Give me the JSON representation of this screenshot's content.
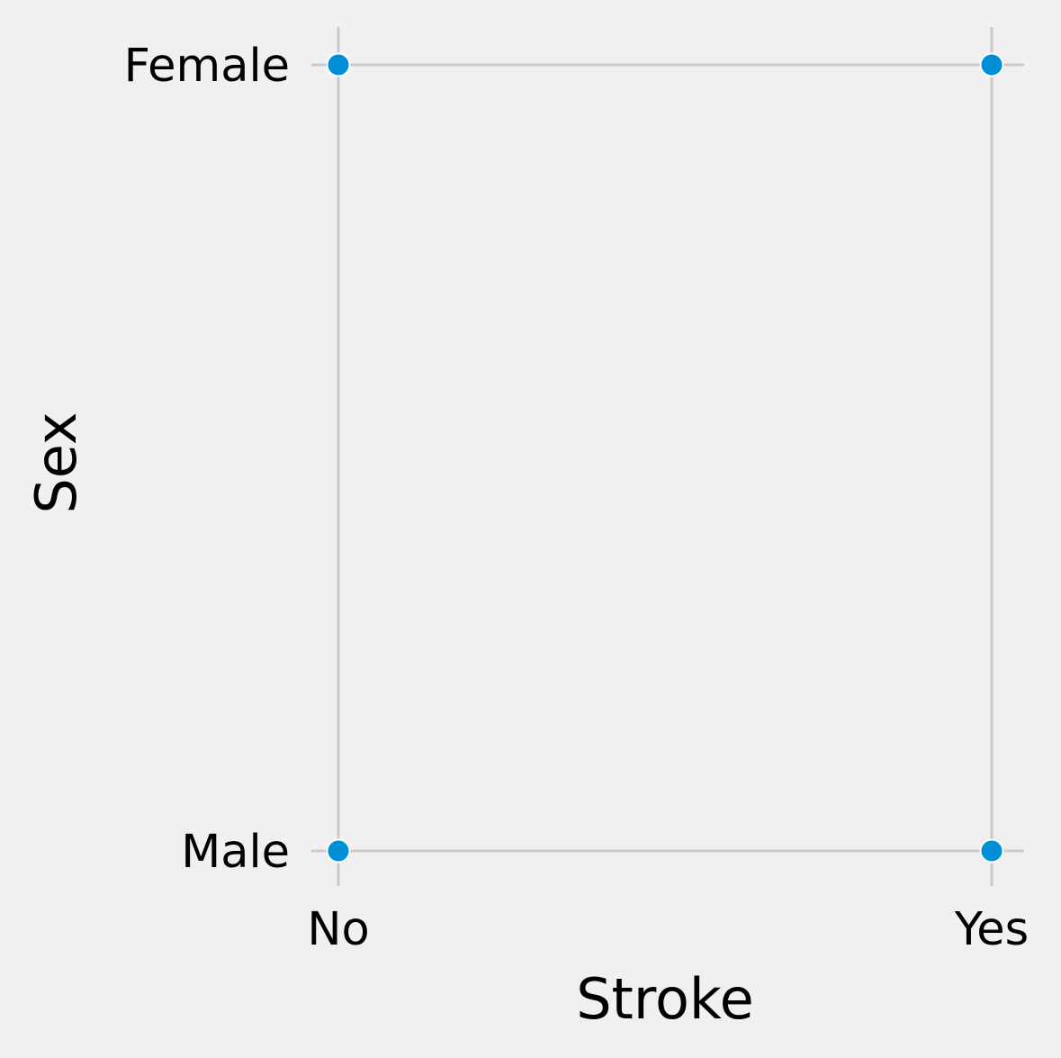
{
  "chart_data": {
    "type": "scatter",
    "xlabel": "Stroke",
    "ylabel": "Sex",
    "x_categories": [
      "No",
      "Yes"
    ],
    "y_categories": [
      "Male",
      "Female"
    ],
    "points": [
      {
        "x": "No",
        "y": "Female"
      },
      {
        "x": "Yes",
        "y": "Female"
      },
      {
        "x": "No",
        "y": "Male"
      },
      {
        "x": "Yes",
        "y": "Male"
      }
    ],
    "grid": true,
    "point_color": "#008fd5",
    "background_color": "#f0f0f0",
    "grid_color": "#cbcbcb"
  }
}
